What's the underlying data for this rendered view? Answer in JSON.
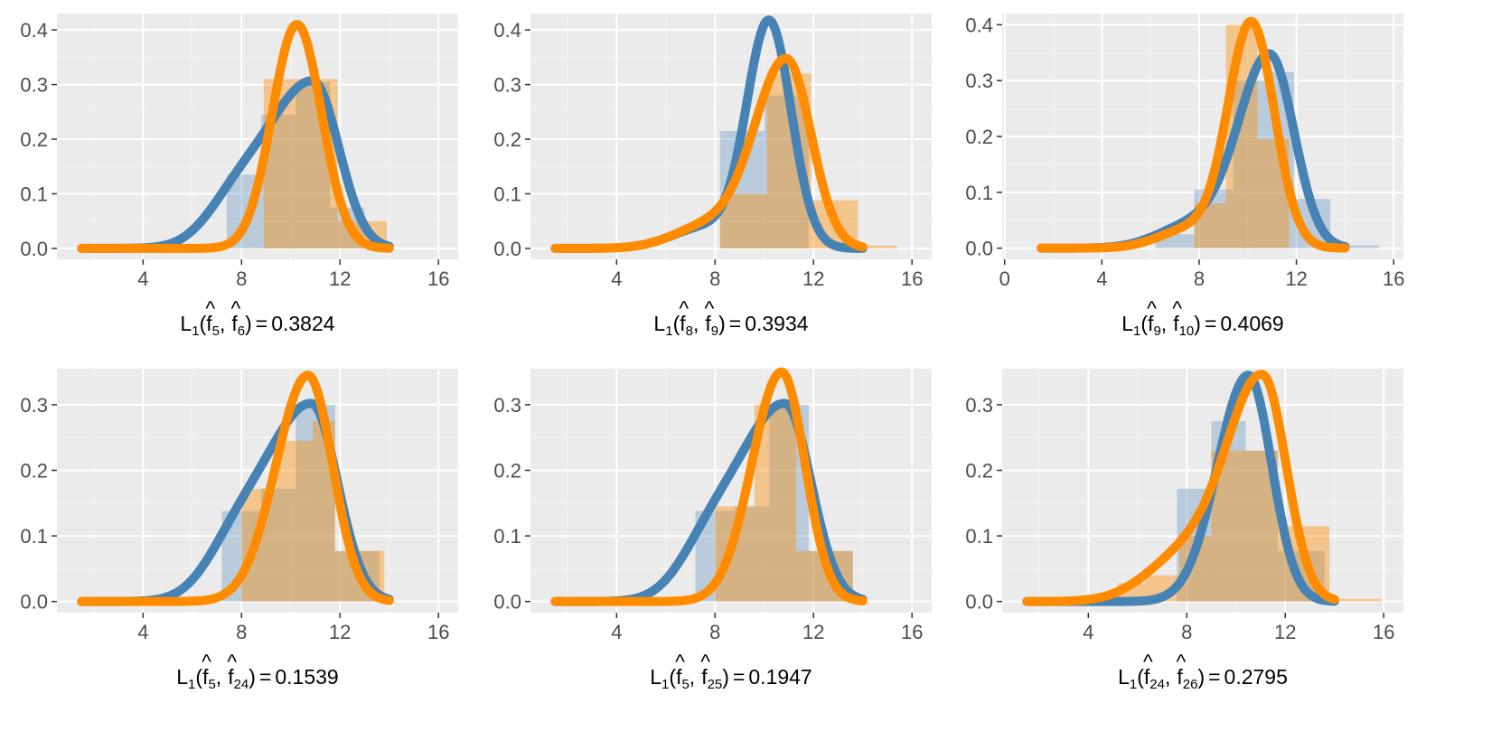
{
  "colors": {
    "panel_bg": "#EBEBEB",
    "grid_major": "#FFFFFF",
    "grid_minor": "#F5F5F5",
    "series_a": "#4682B4",
    "series_b": "#FF8C00",
    "hist_a": "#C6D4E6",
    "hist_b": "#F9C98F",
    "tick_text": "#4D4D4D"
  },
  "chart_data": [
    {
      "type": "histogram+density",
      "xlim": [
        0.5,
        16.8
      ],
      "ylim": [
        -0.02,
        0.43
      ],
      "xticks": [
        4,
        8,
        12,
        16
      ],
      "xtick_labels": [
        "4",
        "8",
        "12",
        "16"
      ],
      "yticks": [
        0,
        0.1,
        0.2,
        0.3,
        0.4
      ],
      "ytick_labels": [
        "0.0",
        "0.1",
        "0.2",
        "0.3",
        "0.4"
      ],
      "xlabel": {
        "L": "L",
        "sub1": "1",
        "open": "(",
        "fa": "f",
        "hat": "^",
        "ia": "5",
        "sep": ",",
        "fb": "f",
        "ib": "6",
        "close": ")",
        "eq": "=",
        "value": "0.3824"
      },
      "series": [
        {
          "name": "f5",
          "color": "series_a",
          "bins": [
            [
              7.4,
              8.8,
              0.135
            ],
            [
              8.8,
              10.2,
              0.245
            ],
            [
              10.2,
              11.6,
              0.305
            ],
            [
              11.6,
              13.0,
              0.075
            ]
          ],
          "peak": 10.9,
          "height": 0.305,
          "sl": 1.9,
          "sr": 1.05,
          "tail": 0.06,
          "tailc": 7.7,
          "tails": 1.2
        },
        {
          "name": "f6",
          "color": "series_b",
          "bins": [
            [
              8.9,
              10.4,
              0.31
            ],
            [
              10.4,
              11.9,
              0.31
            ],
            [
              11.9,
              13.9,
              0.05
            ]
          ],
          "peak": 10.25,
          "height": 0.41,
          "sl": 1.0,
          "sr": 1.0,
          "tail": 0.0,
          "tailc": 8.0,
          "tails": 1.0
        }
      ]
    },
    {
      "type": "histogram+density",
      "xlim": [
        0.5,
        16.8
      ],
      "ylim": [
        -0.02,
        0.43
      ],
      "xticks": [
        4,
        8,
        12,
        16
      ],
      "xtick_labels": [
        "4",
        "8",
        "12",
        "16"
      ],
      "yticks": [
        0,
        0.1,
        0.2,
        0.3,
        0.4
      ],
      "ytick_labels": [
        "0.0",
        "0.1",
        "0.2",
        "0.3",
        "0.4"
      ],
      "xlabel": {
        "L": "L",
        "sub1": "1",
        "open": "(",
        "fa": "f",
        "hat": "^",
        "ia": "8",
        "sep": ",",
        "fb": "f",
        "ib": "9",
        "close": ")",
        "eq": "=",
        "value": "0.3934"
      },
      "series": [
        {
          "name": "f8",
          "color": "series_a",
          "bins": [
            [
              8.2,
              10.0,
              0.215
            ],
            [
              10.0,
              11.8,
              0.28
            ],
            [
              11.8,
              13.6,
              0.0
            ]
          ],
          "peak": 10.2,
          "height": 0.41,
          "sl": 0.9,
          "sr": 0.9,
          "tail": 0.04,
          "tailc": 7.7,
          "tails": 1.4
        },
        {
          "name": "f9",
          "color": "series_b",
          "bins": [
            [
              8.2,
              10.1,
              0.1
            ],
            [
              10.1,
              11.9,
              0.32
            ],
            [
              11.9,
              13.8,
              0.088
            ],
            [
              13.8,
              15.4,
              0.005
            ]
          ],
          "peak": 10.9,
          "height": 0.345,
          "sl": 1.3,
          "sr": 1.0,
          "tail": 0.04,
          "tailc": 7.7,
          "tails": 1.4
        }
      ]
    },
    {
      "type": "histogram+density",
      "xlim": [
        -0.1,
        16.4
      ],
      "ylim": [
        -0.02,
        0.42
      ],
      "xticks": [
        0,
        4,
        8,
        12,
        16
      ],
      "xtick_labels": [
        "0",
        "4",
        "8",
        "12",
        "16"
      ],
      "yticks": [
        0,
        0.1,
        0.2,
        0.3,
        0.4
      ],
      "ytick_labels": [
        "0.0",
        "0.1",
        "0.2",
        "0.3",
        "0.4"
      ],
      "xlabel": {
        "L": "L",
        "sub1": "1",
        "open": "(",
        "fa": "f",
        "hat": "^",
        "ia": "9",
        "sep": ",",
        "fb": "f",
        "ib": "10",
        "close": ")",
        "eq": "=",
        "value": "0.4069"
      },
      "series": [
        {
          "name": "f9",
          "color": "series_a",
          "bins": [
            [
              6.2,
              7.8,
              0.025
            ],
            [
              7.8,
              9.4,
              0.105
            ],
            [
              9.4,
              10.8,
              0.3
            ],
            [
              10.8,
              11.9,
              0.315
            ],
            [
              11.9,
              13.4,
              0.088
            ],
            [
              13.4,
              15.4,
              0.005
            ]
          ],
          "peak": 10.9,
          "height": 0.345,
          "sl": 1.3,
          "sr": 1.0,
          "tail": 0.04,
          "tailc": 7.7,
          "tails": 1.4
        },
        {
          "name": "f10",
          "color": "series_b",
          "bins": [
            [
              7.8,
              9.1,
              0.08
            ],
            [
              9.1,
              10.4,
              0.4
            ],
            [
              10.4,
              11.7,
              0.195
            ],
            [
              11.7,
              13.0,
              0.0
            ]
          ],
          "peak": 10.15,
          "height": 0.4,
          "sl": 0.95,
          "sr": 0.95,
          "tail": 0.035,
          "tailc": 7.7,
          "tails": 1.3
        }
      ]
    },
    {
      "type": "histogram+density",
      "xlim": [
        0.5,
        16.8
      ],
      "ylim": [
        -0.017,
        0.355
      ],
      "xticks": [
        4,
        8,
        12,
        16
      ],
      "xtick_labels": [
        "4",
        "8",
        "12",
        "16"
      ],
      "yticks": [
        0,
        0.1,
        0.2,
        0.3
      ],
      "ytick_labels": [
        "0.0",
        "0.1",
        "0.2",
        "0.3"
      ],
      "xlabel": {
        "L": "L",
        "sub1": "1",
        "open": "(",
        "fa": "f",
        "hat": "^",
        "ia": "5",
        "sep": ",",
        "fb": "f",
        "ib": "24",
        "close": ")",
        "eq": "=",
        "value": "0.1539"
      },
      "series": [
        {
          "name": "f5",
          "color": "series_a",
          "bins": [
            [
              7.2,
              8.8,
              0.138
            ],
            [
              8.8,
              10.2,
              0.172
            ],
            [
              10.2,
              11.8,
              0.3
            ],
            [
              11.8,
              13.6,
              0.077
            ]
          ],
          "peak": 10.85,
          "height": 0.3,
          "sl": 1.9,
          "sr": 1.05,
          "tail": 0.06,
          "tailc": 7.7,
          "tails": 1.2
        },
        {
          "name": "f24",
          "color": "series_b",
          "bins": [
            [
              8.0,
              9.4,
              0.172
            ],
            [
              9.4,
              10.9,
              0.245
            ],
            [
              10.9,
              11.8,
              0.275
            ],
            [
              11.8,
              13.8,
              0.077
            ]
          ],
          "peak": 10.7,
          "height": 0.345,
          "sl": 1.3,
          "sr": 1.0,
          "tail": 0.0,
          "tailc": 8.0,
          "tails": 1.0
        }
      ]
    },
    {
      "type": "histogram+density",
      "xlim": [
        0.5,
        16.8
      ],
      "ylim": [
        -0.017,
        0.355
      ],
      "xticks": [
        4,
        8,
        12,
        16
      ],
      "xtick_labels": [
        "4",
        "8",
        "12",
        "16"
      ],
      "yticks": [
        0,
        0.1,
        0.2,
        0.3
      ],
      "ytick_labels": [
        "0.0",
        "0.1",
        "0.2",
        "0.3"
      ],
      "xlabel": {
        "L": "L",
        "sub1": "1",
        "open": "(",
        "fa": "f",
        "hat": "^",
        "ia": "5",
        "sep": ",",
        "fb": "f",
        "ib": "25",
        "close": ")",
        "eq": "=",
        "value": "0.1947"
      },
      "series": [
        {
          "name": "f5",
          "color": "series_a",
          "bins": [
            [
              7.2,
              8.8,
              0.138
            ],
            [
              8.8,
              10.2,
              0.145
            ],
            [
              10.2,
              11.8,
              0.3
            ],
            [
              11.8,
              13.6,
              0.077
            ]
          ],
          "peak": 10.85,
          "height": 0.3,
          "sl": 1.9,
          "sr": 1.05,
          "tail": 0.06,
          "tailc": 7.7,
          "tails": 1.2
        },
        {
          "name": "f25",
          "color": "series_b",
          "bins": [
            [
              8.0,
              9.6,
              0.145
            ],
            [
              9.6,
              11.3,
              0.3
            ],
            [
              11.3,
              13.6,
              0.077
            ]
          ],
          "peak": 10.7,
          "height": 0.35,
          "sl": 1.2,
          "sr": 0.95,
          "tail": 0.0,
          "tailc": 8.0,
          "tails": 1.0
        }
      ]
    },
    {
      "type": "histogram+density",
      "xlim": [
        0.5,
        16.8
      ],
      "ylim": [
        -0.017,
        0.355
      ],
      "xticks": [
        4,
        8,
        12,
        16
      ],
      "xtick_labels": [
        "4",
        "8",
        "12",
        "16"
      ],
      "yticks": [
        0,
        0.1,
        0.2,
        0.3
      ],
      "ytick_labels": [
        "0.0",
        "0.1",
        "0.2",
        "0.3"
      ],
      "xlabel": {
        "L": "L",
        "sub1": "1",
        "open": "(",
        "fa": "f",
        "hat": "^",
        "ia": "24",
        "sep": ",",
        "fb": "f",
        "ib": "26",
        "close": ")",
        "eq": "=",
        "value": "0.2795"
      },
      "series": [
        {
          "name": "f24",
          "color": "series_a",
          "bins": [
            [
              7.6,
              9.0,
              0.172
            ],
            [
              9.0,
              10.4,
              0.275
            ],
            [
              10.4,
              11.7,
              0.23
            ],
            [
              11.7,
              13.6,
              0.077
            ]
          ],
          "peak": 10.5,
          "height": 0.345,
          "sl": 1.25,
          "sr": 0.95,
          "tail": 0.0,
          "tailc": 8.0,
          "tails": 1.0
        },
        {
          "name": "f26",
          "color": "series_b",
          "bins": [
            [
              5.2,
              6.3,
              0.028
            ],
            [
              6.3,
              7.7,
              0.04
            ],
            [
              7.7,
              9.0,
              0.1
            ],
            [
              9.0,
              10.4,
              0.23
            ],
            [
              10.4,
              11.7,
              0.23
            ],
            [
              11.7,
              13.8,
              0.115
            ],
            [
              13.8,
              15.9,
              0.004
            ]
          ],
          "peak": 11.1,
          "height": 0.335,
          "sl": 1.45,
          "sr": 0.95,
          "tail": 0.07,
          "tailc": 8.0,
          "tails": 1.6
        }
      ]
    }
  ]
}
